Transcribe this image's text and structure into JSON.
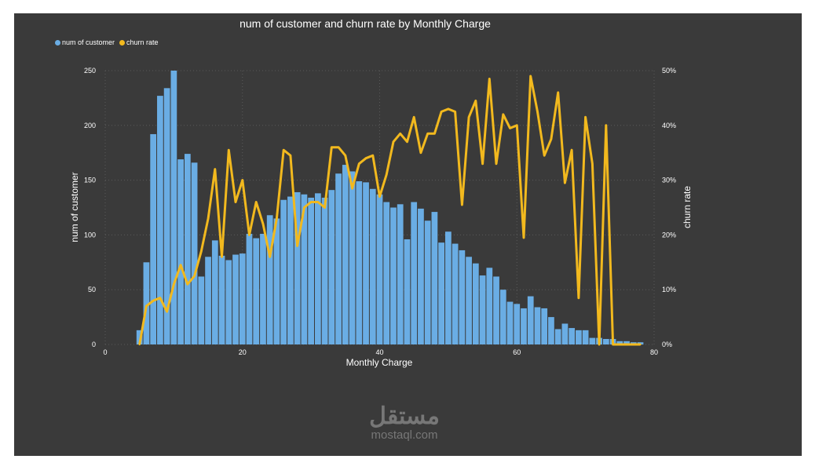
{
  "colors": {
    "bars": "#6aade4",
    "line": "#f2b91e",
    "panel": "#3a3a3a",
    "grid": "#5a5a5a",
    "text": "#ffffff"
  },
  "watermark": {
    "logo": "مستقل",
    "url": "mostaql.com"
  },
  "chart_data": {
    "type": "bar+line",
    "title": "num of customer and churn rate by Monthly Charge",
    "xlabel": "Monthly Charge",
    "ylabel": "num of customer",
    "y2label": "churn rate",
    "xlim": [
      0,
      80
    ],
    "ylim": [
      0,
      250
    ],
    "y2lim": [
      0,
      0.5
    ],
    "x_ticks": [
      0,
      20,
      40,
      60,
      80
    ],
    "y_ticks": [
      0,
      50,
      100,
      150,
      200,
      250
    ],
    "y2_ticks": [
      "0%",
      "10%",
      "20%",
      "30%",
      "40%",
      "50%"
    ],
    "y2_tick_values": [
      0,
      0.1,
      0.2,
      0.3,
      0.4,
      0.5
    ],
    "grid": true,
    "legend_position": "top-left",
    "series": [
      {
        "name": "num of customer",
        "type": "bar",
        "x": [
          5,
          6,
          7,
          8,
          9,
          10,
          11,
          12,
          13,
          14,
          15,
          16,
          17,
          18,
          19,
          20,
          21,
          22,
          23,
          24,
          25,
          26,
          27,
          28,
          29,
          30,
          31,
          32,
          33,
          34,
          35,
          36,
          37,
          38,
          39,
          40,
          41,
          42,
          43,
          44,
          45,
          46,
          47,
          48,
          49,
          50,
          51,
          52,
          53,
          54,
          55,
          56,
          57,
          58,
          59,
          60,
          61,
          62,
          63,
          64,
          65,
          66,
          67,
          68,
          69,
          70,
          71,
          72,
          73,
          74,
          75,
          76,
          77,
          78
        ],
        "values": [
          13,
          75,
          192,
          227,
          234,
          250,
          169,
          174,
          166,
          62,
          80,
          95,
          81,
          77,
          82,
          83,
          101,
          97,
          101,
          118,
          115,
          132,
          135,
          139,
          137,
          134,
          138,
          134,
          141,
          156,
          164,
          158,
          149,
          148,
          142,
          137,
          130,
          125,
          128,
          96,
          130,
          124,
          113,
          121,
          93,
          103,
          92,
          86,
          80,
          74,
          63,
          70,
          62,
          50,
          39,
          37,
          33,
          44,
          34,
          33,
          25,
          14,
          19,
          15,
          13,
          13,
          6,
          6,
          5,
          5,
          3,
          3,
          2,
          2
        ]
      },
      {
        "name": "churn rate",
        "type": "line",
        "x": [
          5,
          6,
          7,
          8,
          9,
          10,
          11,
          12,
          13,
          14,
          15,
          16,
          17,
          18,
          19,
          20,
          21,
          22,
          23,
          24,
          25,
          26,
          27,
          28,
          29,
          30,
          31,
          32,
          33,
          34,
          35,
          36,
          37,
          38,
          39,
          40,
          41,
          42,
          43,
          44,
          45,
          46,
          47,
          48,
          49,
          50,
          51,
          52,
          53,
          54,
          55,
          56,
          57,
          58,
          59,
          60,
          61,
          62,
          63,
          64,
          65,
          66,
          67,
          68,
          69,
          70,
          71,
          72,
          73,
          74,
          75,
          76,
          77,
          78
        ],
        "values": [
          0.0,
          0.07,
          0.08,
          0.085,
          0.06,
          0.11,
          0.145,
          0.11,
          0.125,
          0.17,
          0.23,
          0.32,
          0.16,
          0.355,
          0.26,
          0.3,
          0.2,
          0.26,
          0.22,
          0.16,
          0.23,
          0.355,
          0.345,
          0.18,
          0.25,
          0.26,
          0.26,
          0.25,
          0.36,
          0.36,
          0.345,
          0.285,
          0.33,
          0.34,
          0.345,
          0.27,
          0.31,
          0.37,
          0.385,
          0.37,
          0.415,
          0.35,
          0.385,
          0.385,
          0.425,
          0.43,
          0.425,
          0.255,
          0.415,
          0.445,
          0.33,
          0.485,
          0.33,
          0.42,
          0.395,
          0.4,
          0.195,
          0.49,
          0.425,
          0.345,
          0.375,
          0.46,
          0.295,
          0.355,
          0.085,
          0.415,
          0.33,
          0.0,
          0.4,
          0.0,
          0.0,
          0.0,
          0.0,
          0.0
        ]
      }
    ]
  }
}
